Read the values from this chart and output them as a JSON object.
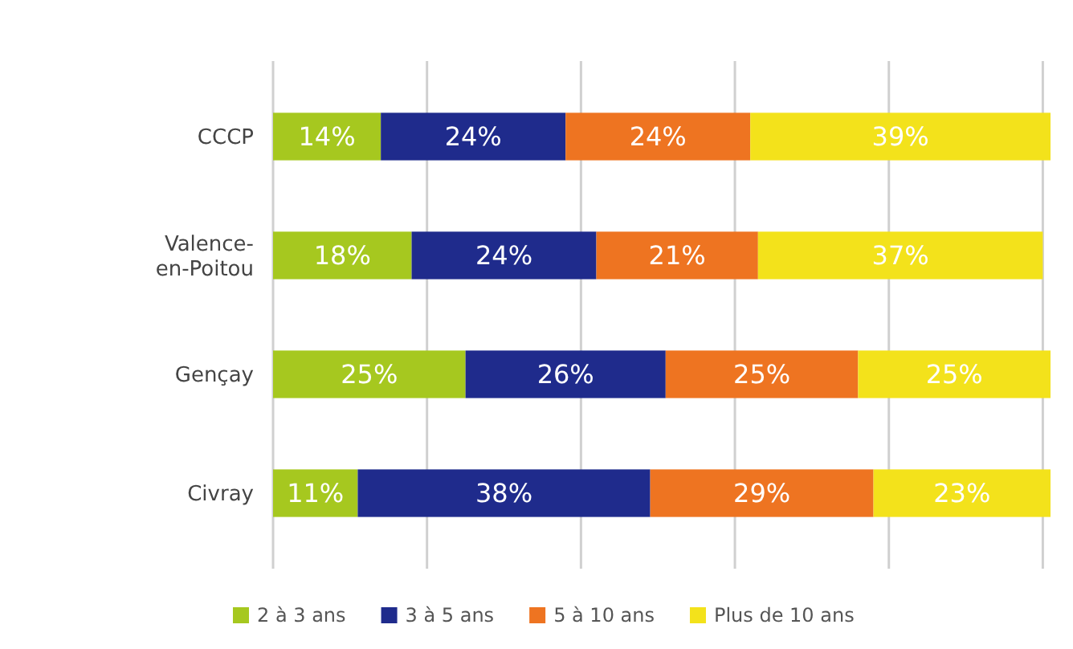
{
  "chart_data": {
    "type": "bar",
    "orientation": "horizontal",
    "stacked": true,
    "grid": "x",
    "tick_labels": "y",
    "legend": "bottom",
    "categories": [
      "CCCP",
      "Valence-en-Poitou",
      "Gençay",
      "Civray"
    ],
    "series": [
      {
        "name": "2 à 3 ans",
        "color": "#a6c81f",
        "values": [
          14,
          18,
          25,
          11
        ],
        "value_labels": [
          "14%",
          "18%",
          "25%",
          "11%"
        ]
      },
      {
        "name": "3 à 5 ans",
        "color": "#1f2b8c",
        "values": [
          24,
          24,
          26,
          38
        ],
        "value_labels": [
          "24%",
          "24%",
          "26%",
          "38%"
        ]
      },
      {
        "name": "5 à 10 ans",
        "color": "#ee7421",
        "values": [
          24,
          21,
          25,
          29
        ],
        "value_labels": [
          "24%",
          "21%",
          "25%",
          "29%"
        ]
      },
      {
        "name": "Plus de 10 ans",
        "color": "#f3e21b",
        "values": [
          39,
          37,
          25,
          23
        ],
        "value_labels": [
          "39%",
          "37%",
          "25%",
          "23%"
        ]
      }
    ]
  }
}
